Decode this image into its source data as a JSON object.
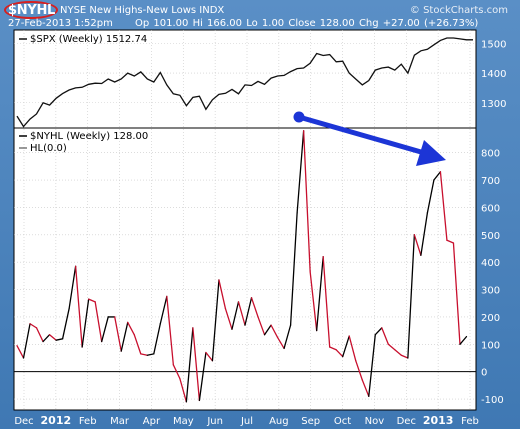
{
  "header": {
    "symbol": "$NYHL",
    "name": "NYSE New Highs-New Lows INDX",
    "brand": "© StockCharts.com",
    "date": "27-Feb-2013 1:52pm",
    "quote": "Op 101.00  Hi 166.00  Lo 1.00  Close 128.00  Chg +27.00 (+26.73%)",
    "circle_color": "#d62020"
  },
  "colors": {
    "frame": "#4a82bd",
    "spx_line": "#111111",
    "nyhl_up": "#000000",
    "nyhl_down": "#c8102e",
    "arrow": "#1c35d6"
  },
  "chart_data": [
    {
      "type": "line",
      "title": "$SPX (Weekly) 1512.74",
      "ylim": [
        1215,
        1545
      ],
      "yticks": [
        1300,
        1400,
        1500
      ],
      "series": [
        {
          "name": "$SPX (Weekly) 1512.74",
          "values": [
            1255,
            1220,
            1245,
            1262,
            1300,
            1292,
            1315,
            1331,
            1343,
            1350,
            1352,
            1362,
            1366,
            1365,
            1380,
            1370,
            1380,
            1400,
            1390,
            1404,
            1380,
            1370,
            1402,
            1360,
            1330,
            1325,
            1290,
            1318,
            1322,
            1278,
            1310,
            1328,
            1332,
            1345,
            1330,
            1360,
            1358,
            1372,
            1362,
            1383,
            1390,
            1392,
            1405,
            1415,
            1417,
            1433,
            1466,
            1459,
            1462,
            1438,
            1440,
            1400,
            1380,
            1360,
            1375,
            1410,
            1417,
            1420,
            1410,
            1430,
            1400,
            1460,
            1475,
            1480,
            1495,
            1510,
            1518,
            1518,
            1515,
            1512,
            1512
          ]
        }
      ]
    },
    {
      "type": "line",
      "title": "$NYHL (Weekly) 128.00",
      "legend": [
        "$NYHL (Weekly) 128.00",
        "HL(0.0)"
      ],
      "ylim": [
        -140,
        890
      ],
      "yticks": [
        -100,
        0,
        100,
        200,
        300,
        400,
        500,
        600,
        700,
        800
      ],
      "zero_line": 0,
      "x_tick_labels": [
        "Dec",
        "2012",
        "Feb",
        "Mar",
        "Apr",
        "May",
        "Jun",
        "Jul",
        "Aug",
        "Sep",
        "Oct",
        "Nov",
        "Dec",
        "2013",
        "Feb"
      ],
      "series": [
        {
          "name": "$NYHL (Weekly) 128.00",
          "values": [
            95,
            50,
            175,
            160,
            110,
            135,
            115,
            120,
            230,
            385,
            90,
            265,
            255,
            110,
            200,
            200,
            75,
            180,
            135,
            65,
            60,
            65,
            175,
            275,
            25,
            -25,
            -110,
            160,
            -105,
            70,
            40,
            335,
            230,
            155,
            255,
            170,
            270,
            200,
            135,
            170,
            125,
            85,
            170,
            580,
            880,
            365,
            150,
            420,
            90,
            80,
            55,
            130,
            40,
            -30,
            -90,
            135,
            160,
            100,
            80,
            60,
            50,
            500,
            425,
            580,
            700,
            730,
            480,
            470,
            100,
            128
          ]
        }
      ]
    }
  ]
}
